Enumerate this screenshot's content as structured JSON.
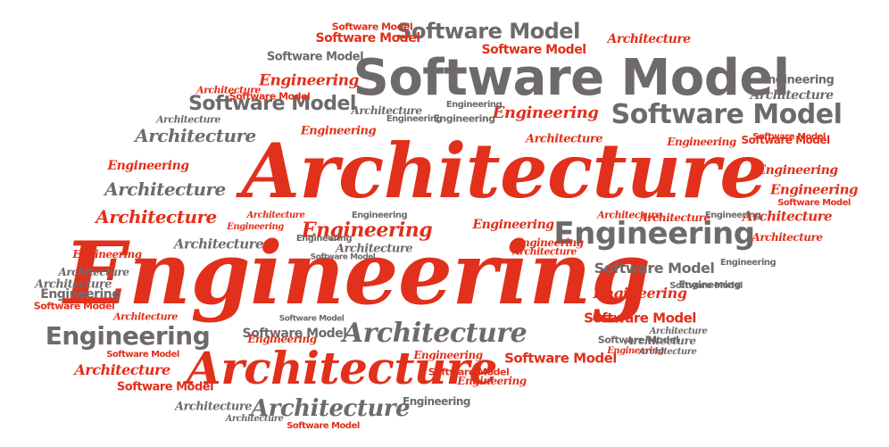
{
  "words": [
    "Architecture",
    "Engineering",
    "Software Model"
  ],
  "colors": {
    "red": "#e1301b",
    "gray": "#6f6a6a",
    "background": "#ffffff"
  }
}
